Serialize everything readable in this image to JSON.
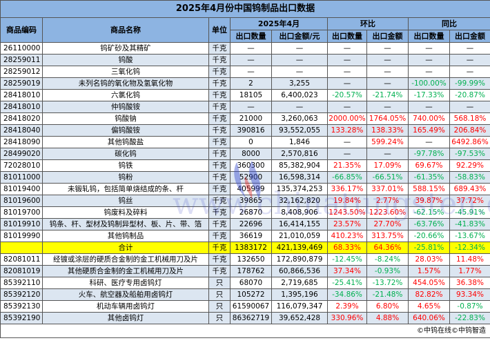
{
  "title": "2025年4月份中国钨制品出口数据",
  "headers": {
    "code": "商品编码",
    "name": "商品名称",
    "unit": "单位",
    "period": "2025年4月",
    "mom": "环比",
    "yoy": "同比",
    "qty": "出口数量",
    "amount": "出口金额/元",
    "mom_qty": "出口数量",
    "mom_amt": "出口金额",
    "yoy_qty": "出口数量",
    "yoy_amt": "出口金额"
  },
  "rows": [
    [
      "26110000",
      "钨矿砂及其精矿",
      "千克",
      "—",
      "—",
      "—",
      "—",
      "—",
      "—"
    ],
    [
      "28259011",
      "钨酸",
      "千克",
      "—",
      "—",
      "—",
      "—",
      "—",
      "—"
    ],
    [
      "28259012",
      "三氧化钨",
      "千克",
      "—",
      "—",
      "—",
      "—",
      "—",
      "—"
    ],
    [
      "28259019",
      "未列名钨的氧化物及氢氧化物",
      "千克",
      "2",
      "3,255",
      "—",
      "—",
      "-100.00%",
      "-99.99%"
    ],
    [
      "28418010",
      "六氯化钨",
      "千克",
      "18105",
      "6,400,023",
      "-20.57%",
      "-21.74%",
      "-17.33%",
      "-20.87%"
    ],
    [
      "28418010",
      "仲钨酸铵",
      "千克",
      "—",
      "—",
      "—",
      "—",
      "—",
      "—"
    ],
    [
      "28418020",
      "钨酸钠",
      "千克",
      "21000",
      "3,260,063",
      "2000.00%",
      "1764.05%",
      "740.00%",
      "568.18%"
    ],
    [
      "28418040",
      "偏钨酸铵",
      "千克",
      "390816",
      "93,552,055",
      "133.28%",
      "138.33%",
      "165.49%",
      "206.84%"
    ],
    [
      "28418090",
      "其他钨酸盐",
      "千克",
      "0",
      "1,846",
      "—",
      "599.24%",
      "—",
      "6492.86%"
    ],
    [
      "28499020",
      "碳化钨",
      "千克",
      "8000",
      "2,570,816",
      "—",
      "—",
      "-97.78%",
      "-97.53%"
    ],
    [
      "72028010",
      "钨铁",
      "千克",
      "360300",
      "85,382,904",
      "21.35%",
      "17.09%",
      "69.67%",
      "92.29%"
    ],
    [
      "81011000",
      "钨粉",
      "千克",
      "52900",
      "16,598,314",
      "-66.85%",
      "-66.51%",
      "-61.35%",
      "-58.83%"
    ],
    [
      "81019400",
      "未锻轧钨，包括简单烧结成的条、杆",
      "千克",
      "405999",
      "135,374,253",
      "336.17%",
      "337.01%",
      "588.15%",
      "689.43%"
    ],
    [
      "81019600",
      "钨丝",
      "千克",
      "39865",
      "32,162,820",
      "19.84%",
      "2.77%",
      "39.87%",
      "37.72%"
    ],
    [
      "81019700",
      "钨废料及碎料",
      "千克",
      "26870",
      "8,408,906",
      "1243.50%",
      "1223.60%",
      "-62.15%",
      "-45.91%"
    ],
    [
      "81019910",
      "钨条、杆、型材及钨制异型材、板、片、带、箔",
      "千克",
      "22696",
      "16,414,155",
      "23.57%",
      "27.70%",
      "-63.76%",
      "-41.83%"
    ],
    [
      "81019990",
      "其他钨制品",
      "千克",
      "36619",
      "21,010,059",
      "410.23%",
      "313.75%",
      "-20.66%",
      "-13.67%"
    ],
    [
      "",
      "合计",
      "千克",
      "1383172",
      "421,139,469",
      "68.33%",
      "64.36%",
      "-25.81%",
      "-12.34%"
    ],
    [
      "82081011",
      "经镀或涂层的硬质合金制的金工机械用刀及片",
      "千克",
      "132650",
      "172,890,879",
      "-12.45%",
      "-8.24%",
      "28.03%",
      "11.48%"
    ],
    [
      "82081019",
      "其他硬质合金制的金工机械用刀及片",
      "千克",
      "178762",
      "60,866,536",
      "37.34%",
      "-0.93%",
      "1.57%",
      "1.77%"
    ],
    [
      "85392110",
      "科研、医疗专用卤钨灯",
      "只",
      "68070",
      "2,719,685",
      "-25.41%",
      "-13.72%",
      "454.05%",
      "36.38%"
    ],
    [
      "85392120",
      "火车、航空器及船舶用卤钨灯",
      "只",
      "105272",
      "1,395,196",
      "-34.86%",
      "-21.48%",
      "82.82%",
      "93.34%"
    ],
    [
      "85392130",
      "机动车辆用卤钨灯",
      "只",
      "61590067",
      "116,079,347",
      "2.39%",
      "6.80%",
      "4.65%",
      "-0.87%"
    ],
    [
      "85392190",
      "其他卤钨灯",
      "只",
      "86362719",
      "39,652,428",
      "330.96%",
      "4.88%",
      "640.06%",
      "-22.83%"
    ]
  ],
  "total_row_index": 17,
  "footer": "©中钨在线©中钨智造",
  "watermark": "www.chinatungsten.com",
  "colors": {
    "header": "#8db4e2",
    "alt_row": "#dce6f1",
    "total": "#ffff00",
    "positive": "#ff0000",
    "negative": "#00b050"
  }
}
